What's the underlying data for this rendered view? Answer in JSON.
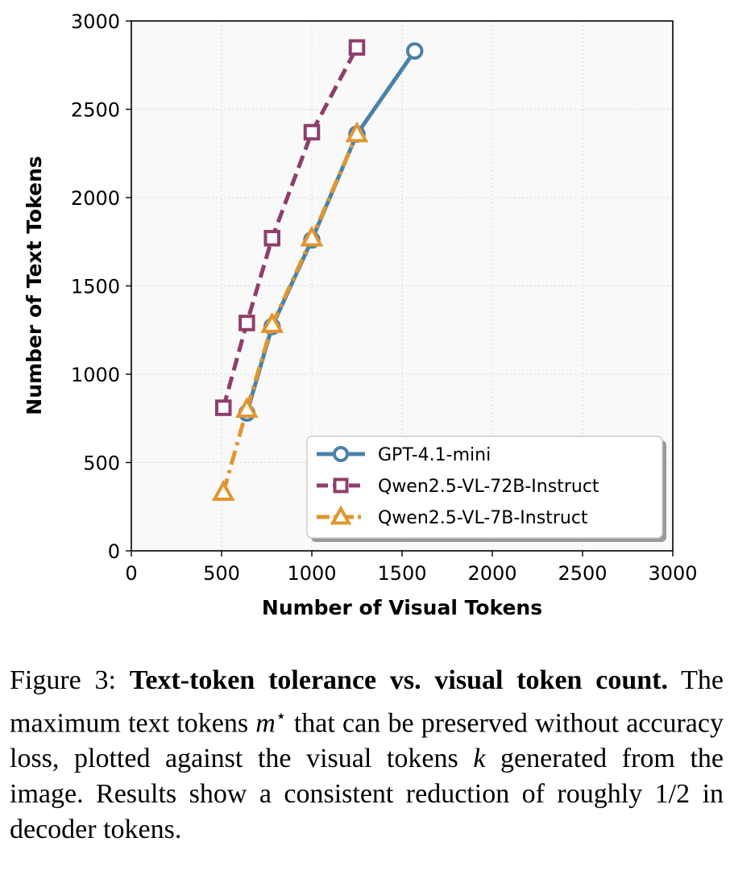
{
  "chart_data": {
    "type": "line",
    "title": "",
    "xlabel": "Number of Visual Tokens",
    "ylabel": "Number of Text Tokens",
    "xlim": [
      0,
      3000
    ],
    "ylim": [
      0,
      3000
    ],
    "xticks": [
      "0",
      "500",
      "1000",
      "1500",
      "2000",
      "2500",
      "3000"
    ],
    "yticks": [
      "0",
      "500",
      "1000",
      "1500",
      "2000",
      "2500",
      "3000"
    ],
    "grid": true,
    "legend_position": "lower-right",
    "series": [
      {
        "name": "GPT-4.1-mini",
        "color": "#4a82a8",
        "marker": "circle",
        "line_style": "solid",
        "x": [
          640,
          780,
          1000,
          1250,
          1570
        ],
        "y": [
          780,
          1270,
          1760,
          2360,
          2830
        ]
      },
      {
        "name": "Qwen2.5-VL-72B-Instruct",
        "color": "#8f3e6c",
        "marker": "square",
        "line_style": "dashed",
        "x": [
          510,
          640,
          780,
          1000,
          1250
        ],
        "y": [
          810,
          1290,
          1770,
          2370,
          2850
        ]
      },
      {
        "name": "Qwen2.5-VL-7B-Instruct",
        "color": "#e2952f",
        "marker": "triangle",
        "line_style": "dashdot",
        "x": [
          510,
          640,
          780,
          1000,
          1250
        ],
        "y": [
          330,
          800,
          1280,
          1770,
          2360
        ]
      }
    ]
  },
  "caption": {
    "label": "Figure 3:",
    "title": "Text-token tolerance vs. visual token count.",
    "body_1": "The maximum text tokens",
    "math_m": "m",
    "math_star": "⋆",
    "body_2": "that can be preserved without accuracy loss, plotted against the visual tokens",
    "math_k": "k",
    "body_3": "generated from the image. Results show a consistent reduction of roughly",
    "math_frac": "1/2",
    "body_4": "in decoder tokens."
  }
}
